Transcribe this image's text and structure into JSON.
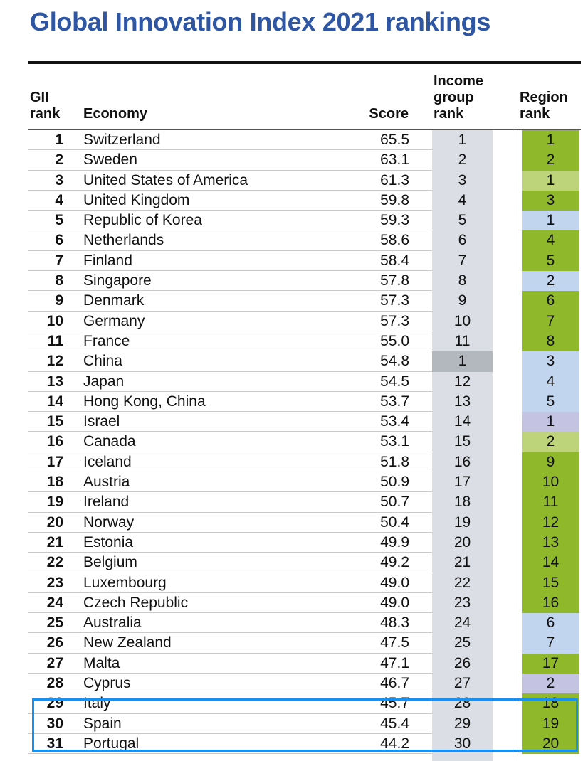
{
  "title": "Global Innovation Index 2021 rankings",
  "headers": {
    "gii_rank": [
      "GII",
      "rank"
    ],
    "economy": "Economy",
    "score": "Score",
    "income_group_rank": [
      "Income",
      "group",
      "rank"
    ],
    "region_rank": [
      "Region",
      "rank"
    ]
  },
  "colors": {
    "title": "#2e56a3",
    "income_bg": "#dbdee4",
    "income_highlight": "#b3b7be",
    "region_europe": "#8fb82b",
    "region_north_america": "#bed47a",
    "region_asia": "#c2d5ef",
    "region_middle_east": "#c4c3e2",
    "selection_box": "#1890f0"
  },
  "rows": [
    {
      "rank": "1",
      "economy": "Switzerland",
      "score": "65.5",
      "income_rank": "1",
      "region_rank": "1",
      "region_group": "europe"
    },
    {
      "rank": "2",
      "economy": "Sweden",
      "score": "63.1",
      "income_rank": "2",
      "region_rank": "2",
      "region_group": "europe"
    },
    {
      "rank": "3",
      "economy": "United States of America",
      "score": "61.3",
      "income_rank": "3",
      "region_rank": "1",
      "region_group": "north_america"
    },
    {
      "rank": "4",
      "economy": "United Kingdom",
      "score": "59.8",
      "income_rank": "4",
      "region_rank": "3",
      "region_group": "europe"
    },
    {
      "rank": "5",
      "economy": "Republic of Korea",
      "score": "59.3",
      "income_rank": "5",
      "region_rank": "1",
      "region_group": "asia"
    },
    {
      "rank": "6",
      "economy": "Netherlands",
      "score": "58.6",
      "income_rank": "6",
      "region_rank": "4",
      "region_group": "europe"
    },
    {
      "rank": "7",
      "economy": "Finland",
      "score": "58.4",
      "income_rank": "7",
      "region_rank": "5",
      "region_group": "europe"
    },
    {
      "rank": "8",
      "economy": "Singapore",
      "score": "57.8",
      "income_rank": "8",
      "region_rank": "2",
      "region_group": "asia"
    },
    {
      "rank": "9",
      "economy": "Denmark",
      "score": "57.3",
      "income_rank": "9",
      "region_rank": "6",
      "region_group": "europe"
    },
    {
      "rank": "10",
      "economy": "Germany",
      "score": "57.3",
      "income_rank": "10",
      "region_rank": "7",
      "region_group": "europe"
    },
    {
      "rank": "11",
      "economy": "France",
      "score": "55.0",
      "income_rank": "11",
      "region_rank": "8",
      "region_group": "europe"
    },
    {
      "rank": "12",
      "economy": "China",
      "score": "54.8",
      "income_rank": "1",
      "region_rank": "3",
      "region_group": "asia",
      "income_highlight": true
    },
    {
      "rank": "13",
      "economy": "Japan",
      "score": "54.5",
      "income_rank": "12",
      "region_rank": "4",
      "region_group": "asia"
    },
    {
      "rank": "14",
      "economy": "Hong Kong, China",
      "score": "53.7",
      "income_rank": "13",
      "region_rank": "5",
      "region_group": "asia"
    },
    {
      "rank": "15",
      "economy": "Israel",
      "score": "53.4",
      "income_rank": "14",
      "region_rank": "1",
      "region_group": "middle_east"
    },
    {
      "rank": "16",
      "economy": "Canada",
      "score": "53.1",
      "income_rank": "15",
      "region_rank": "2",
      "region_group": "north_america"
    },
    {
      "rank": "17",
      "economy": "Iceland",
      "score": "51.8",
      "income_rank": "16",
      "region_rank": "9",
      "region_group": "europe"
    },
    {
      "rank": "18",
      "economy": "Austria",
      "score": "50.9",
      "income_rank": "17",
      "region_rank": "10",
      "region_group": "europe"
    },
    {
      "rank": "19",
      "economy": "Ireland",
      "score": "50.7",
      "income_rank": "18",
      "region_rank": "11",
      "region_group": "europe"
    },
    {
      "rank": "20",
      "economy": "Norway",
      "score": "50.4",
      "income_rank": "19",
      "region_rank": "12",
      "region_group": "europe"
    },
    {
      "rank": "21",
      "economy": "Estonia",
      "score": "49.9",
      "income_rank": "20",
      "region_rank": "13",
      "region_group": "europe"
    },
    {
      "rank": "22",
      "economy": "Belgium",
      "score": "49.2",
      "income_rank": "21",
      "region_rank": "14",
      "region_group": "europe"
    },
    {
      "rank": "23",
      "economy": "Luxembourg",
      "score": "49.0",
      "income_rank": "22",
      "region_rank": "15",
      "region_group": "europe"
    },
    {
      "rank": "24",
      "economy": "Czech Republic",
      "score": "49.0",
      "income_rank": "23",
      "region_rank": "16",
      "region_group": "europe"
    },
    {
      "rank": "25",
      "economy": "Australia",
      "score": "48.3",
      "income_rank": "24",
      "region_rank": "6",
      "region_group": "asia"
    },
    {
      "rank": "26",
      "economy": "New Zealand",
      "score": "47.5",
      "income_rank": "25",
      "region_rank": "7",
      "region_group": "asia"
    },
    {
      "rank": "27",
      "economy": "Malta",
      "score": "47.1",
      "income_rank": "26",
      "region_rank": "17",
      "region_group": "europe"
    },
    {
      "rank": "28",
      "economy": "Cyprus",
      "score": "46.7",
      "income_rank": "27",
      "region_rank": "2",
      "region_group": "middle_east"
    },
    {
      "rank": "29",
      "economy": "Italy",
      "score": "45.7",
      "income_rank": "28",
      "region_rank": "18",
      "region_group": "europe"
    },
    {
      "rank": "30",
      "economy": "Spain",
      "score": "45.4",
      "income_rank": "29",
      "region_rank": "19",
      "region_group": "europe"
    },
    {
      "rank": "31",
      "economy": "Portugal",
      "score": "44.2",
      "income_rank": "30",
      "region_rank": "20",
      "region_group": "europe"
    }
  ]
}
